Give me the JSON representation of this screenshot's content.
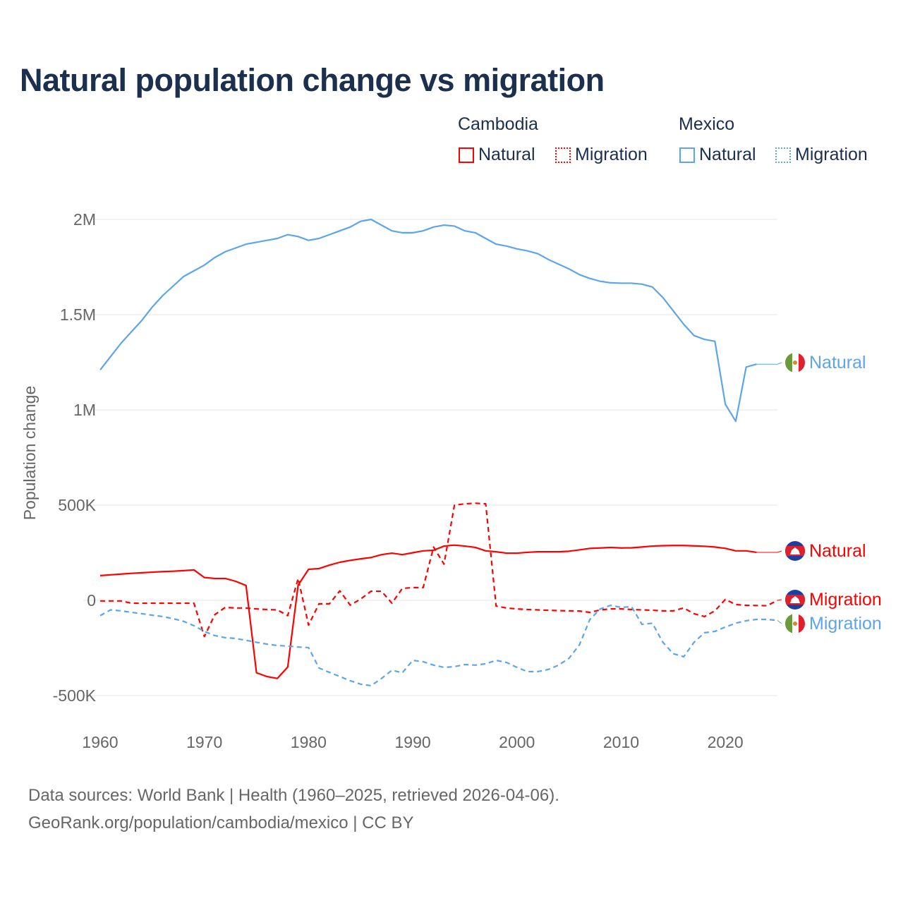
{
  "chart_data": {
    "type": "line",
    "title": "Natural population change vs migration",
    "ylabel": "Population change",
    "xlabel": "",
    "xlim": [
      1960,
      2025
    ],
    "ylim": [
      -500000,
      2000000
    ],
    "grid": true,
    "x_ticks": [
      "1960",
      "1970",
      "1980",
      "1990",
      "2000",
      "2010",
      "2020"
    ],
    "y_ticks": [
      {
        "v": 2000000,
        "label": "2M"
      },
      {
        "v": 1500000,
        "label": "1.5M"
      },
      {
        "v": 1000000,
        "label": "1M"
      },
      {
        "v": 500000,
        "label": "500K"
      },
      {
        "v": 0,
        "label": "0"
      },
      {
        "v": -500000,
        "label": "-500K"
      }
    ],
    "legend": {
      "placement": "top-right",
      "groups": [
        {
          "name": "Cambodia",
          "items": [
            "Natural",
            "Migration"
          ]
        },
        {
          "name": "Mexico",
          "items": [
            "Natural",
            "Migration"
          ]
        }
      ]
    },
    "series": [
      {
        "name": "Mexico Natural",
        "country": "Mexico",
        "kind": "Natural",
        "color": "#5da5ea",
        "dash": false,
        "end_label": "Natural",
        "start": 1960,
        "values": [
          1.21,
          1.28,
          1.35,
          1.41,
          1.47,
          1.54,
          1.6,
          1.65,
          1.7,
          1.73,
          1.76,
          1.8,
          1.83,
          1.85,
          1.87,
          1.88,
          1.89,
          1.9,
          1.92,
          1.91,
          1.89,
          1.9,
          1.92,
          1.94,
          1.96,
          1.99,
          2.0,
          1.97,
          1.94,
          1.93,
          1.93,
          1.94,
          1.96,
          1.97,
          1.965,
          1.94,
          1.93,
          1.9,
          1.87,
          1.86,
          1.845,
          1.835,
          1.82,
          1.79,
          1.765,
          1.74,
          1.71,
          1.69,
          1.675,
          1.667,
          1.665,
          1.665,
          1.66,
          1.645,
          1.59,
          1.52,
          1.45,
          1.39,
          1.37,
          1.36,
          1.03,
          0.94,
          1.225,
          1.24
        ]
      },
      {
        "name": "Cambodia Natural",
        "country": "Cambodia",
        "kind": "Natural",
        "color": "#ff0000",
        "dash": false,
        "end_label": "Natural",
        "start": 1960,
        "values": [
          0.13,
          0.134,
          0.138,
          0.142,
          0.145,
          0.148,
          0.151,
          0.153,
          0.156,
          0.16,
          0.12,
          0.115,
          0.115,
          0.1,
          0.078,
          -0.38,
          -0.4,
          -0.41,
          -0.35,
          0.08,
          0.163,
          0.167,
          0.185,
          0.2,
          0.21,
          0.218,
          0.225,
          0.24,
          0.248,
          0.24,
          0.25,
          0.26,
          0.263,
          0.285,
          0.29,
          0.285,
          0.278,
          0.26,
          0.255,
          0.248,
          0.248,
          0.252,
          0.255,
          0.255,
          0.255,
          0.258,
          0.265,
          0.273,
          0.275,
          0.278,
          0.275,
          0.276,
          0.28,
          0.285,
          0.287,
          0.288,
          0.288,
          0.286,
          0.284,
          0.28,
          0.273,
          0.26,
          0.26,
          0.252
        ]
      },
      {
        "name": "Cambodia Migration",
        "country": "Cambodia",
        "kind": "Migration",
        "color": "#ff0000",
        "dash": true,
        "end_label": "Migration",
        "start": 1960,
        "values": [
          -0.003,
          -0.003,
          -0.003,
          -0.015,
          -0.015,
          -0.015,
          -0.015,
          -0.015,
          -0.015,
          -0.015,
          -0.19,
          -0.075,
          -0.037,
          -0.04,
          -0.04,
          -0.045,
          -0.048,
          -0.05,
          -0.08,
          0.115,
          -0.13,
          -0.018,
          -0.018,
          0.05,
          -0.025,
          0.007,
          0.048,
          0.048,
          -0.015,
          0.063,
          0.067,
          0.067,
          0.28,
          0.19,
          0.5,
          0.507,
          0.51,
          0.507,
          -0.03,
          -0.04,
          -0.045,
          -0.048,
          -0.05,
          -0.052,
          -0.054,
          -0.055,
          -0.056,
          -0.063,
          -0.05,
          -0.045,
          -0.045,
          -0.048,
          -0.05,
          -0.052,
          -0.055,
          -0.055,
          -0.04,
          -0.07,
          -0.085,
          -0.055,
          0.005,
          -0.022,
          -0.026,
          -0.027,
          -0.028,
          0.0
        ]
      },
      {
        "name": "Mexico Migration",
        "country": "Mexico",
        "kind": "Migration",
        "color": "#5da5ea",
        "dash": true,
        "end_label": "Migration",
        "start": 1960,
        "values": [
          -0.08,
          -0.05,
          -0.055,
          -0.063,
          -0.07,
          -0.078,
          -0.085,
          -0.096,
          -0.11,
          -0.133,
          -0.163,
          -0.185,
          -0.196,
          -0.2,
          -0.21,
          -0.22,
          -0.23,
          -0.237,
          -0.24,
          -0.245,
          -0.248,
          -0.355,
          -0.378,
          -0.4,
          -0.422,
          -0.44,
          -0.448,
          -0.41,
          -0.367,
          -0.38,
          -0.315,
          -0.322,
          -0.34,
          -0.352,
          -0.348,
          -0.337,
          -0.34,
          -0.333,
          -0.315,
          -0.326,
          -0.352,
          -0.374,
          -0.374,
          -0.363,
          -0.34,
          -0.304,
          -0.233,
          -0.1,
          -0.045,
          -0.026,
          -0.037,
          -0.033,
          -0.126,
          -0.12,
          -0.22,
          -0.28,
          -0.296,
          -0.22,
          -0.17,
          -0.163,
          -0.14,
          -0.12,
          -0.107,
          -0.1,
          -0.1,
          -0.105
        ]
      }
    ],
    "value_unit": "millions"
  },
  "footer": {
    "line1": "Data sources: World Bank | Health (1960–2025, retrieved 2026-04-06).",
    "line2": "GeoRank.org/population/cambodia/mexico | CC BY"
  }
}
